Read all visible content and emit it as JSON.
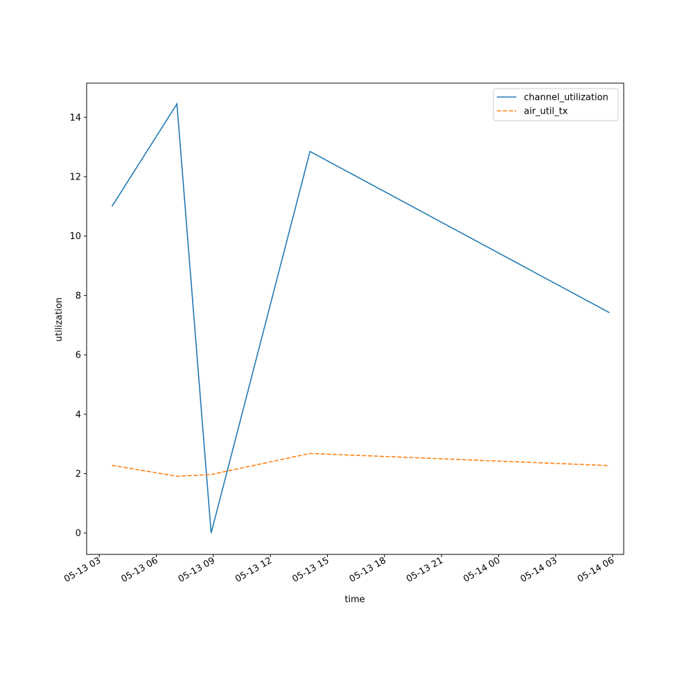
{
  "chart_data": {
    "type": "line",
    "title": "",
    "xlabel": "time",
    "ylabel": "utilization",
    "x_tick_labels": [
      "05-13 03",
      "05-13 06",
      "05-13 09",
      "05-13 12",
      "05-13 15",
      "05-13 18",
      "05-13 21",
      "05-14 00",
      "05-14 03",
      "05-14 06"
    ],
    "x_ticks": [
      "2024-05-13 03:00",
      "2024-05-13 06:00",
      "2024-05-13 09:00",
      "2024-05-13 12:00",
      "2024-05-13 15:00",
      "2024-05-13 18:00",
      "2024-05-13 21:00",
      "2024-05-14 00:00",
      "2024-05-14 03:00",
      "2024-05-14 06:00"
    ],
    "xlim": [
      "2024-05-13 02:20",
      "2024-05-14 06:35"
    ],
    "y_ticks": [
      0,
      2,
      4,
      6,
      8,
      10,
      12,
      14
    ],
    "ylim": [
      -0.72,
      15.15
    ],
    "grid": false,
    "legend_position": "top-right",
    "series": [
      {
        "name": "channel_utilization",
        "style": "solid",
        "color": "#1f77b4",
        "x": [
          "2024-05-13 03:40",
          "2024-05-13 07:05",
          "2024-05-13 08:53",
          "2024-05-13 14:05",
          "2024-05-14 05:50"
        ],
        "y": [
          11.0,
          14.45,
          0.0,
          12.85,
          7.42
        ]
      },
      {
        "name": "air_util_tx",
        "style": "dashed",
        "color": "#ff7f0e",
        "x": [
          "2024-05-13 03:40",
          "2024-05-13 07:05",
          "2024-05-13 08:53",
          "2024-05-13 14:05",
          "2024-05-14 05:50"
        ],
        "y": [
          2.28,
          1.91,
          1.97,
          2.68,
          2.27
        ]
      }
    ]
  }
}
